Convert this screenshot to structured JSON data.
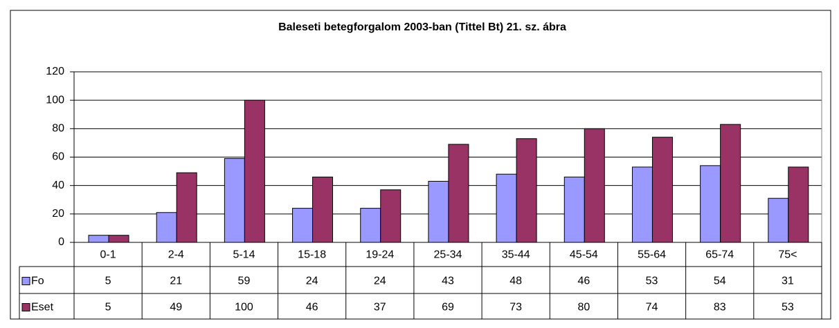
{
  "chart_data": {
    "type": "bar",
    "title": "Baleseti betegforgalom 2003-ban (Tittel Bt) 21. sz. ábra",
    "categories": [
      "0-1",
      "2-4",
      "5-14",
      "15-18",
      "19-24",
      "25-34",
      "35-44",
      "45-54",
      "55-64",
      "65-74",
      "75<"
    ],
    "series": [
      {
        "name": "Fo",
        "color": "#9999ff",
        "values": [
          5,
          21,
          59,
          24,
          24,
          43,
          48,
          46,
          53,
          54,
          31
        ]
      },
      {
        "name": "Eset",
        "color": "#993366",
        "values": [
          5,
          49,
          100,
          46,
          37,
          69,
          73,
          80,
          74,
          83,
          53
        ]
      }
    ],
    "ylim": [
      0,
      120
    ],
    "yticks": [
      0,
      20,
      40,
      60,
      80,
      100,
      120
    ],
    "grid": true,
    "data_table": true
  }
}
